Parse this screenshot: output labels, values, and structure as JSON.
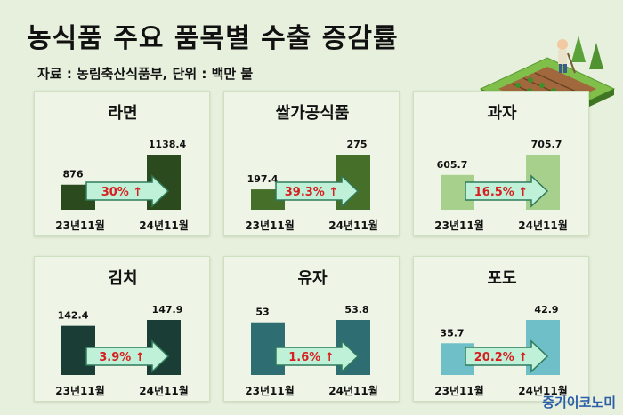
{
  "header": {
    "title": "농식품 주요 품목별 수출 증감률",
    "source": "자료 : 농림축산식품부, 단위 : 백만 불"
  },
  "brand": "중기이코노미",
  "chart_data": [
    {
      "type": "bar",
      "title": "라면",
      "categories": [
        "23년11월",
        "24년11월"
      ],
      "values": [
        876,
        1138.4
      ],
      "value_labels": [
        "876",
        "1138.4"
      ],
      "change": "30%",
      "colors": [
        "#2b4a1e",
        "#2b4a1e"
      ]
    },
    {
      "type": "bar",
      "title": "쌀가공식품",
      "categories": [
        "23년11월",
        "24년11월"
      ],
      "values": [
        197.4,
        275
      ],
      "value_labels": [
        "197.4",
        "275"
      ],
      "change": "39.3%",
      "colors": [
        "#466f2a",
        "#466f2a"
      ]
    },
    {
      "type": "bar",
      "title": "과자",
      "categories": [
        "23년11월",
        "24년11월"
      ],
      "values": [
        605.7,
        705.7
      ],
      "value_labels": [
        "605.7",
        "705.7"
      ],
      "change": "16.5%",
      "colors": [
        "#a7d08c",
        "#a7d08c"
      ]
    },
    {
      "type": "bar",
      "title": "김치",
      "categories": [
        "23년11월",
        "24년11월"
      ],
      "values": [
        142.4,
        147.9
      ],
      "value_labels": [
        "142.4",
        "147.9"
      ],
      "change": "3.9%",
      "colors": [
        "#1a3d36",
        "#1a3d36"
      ]
    },
    {
      "type": "bar",
      "title": "유자",
      "categories": [
        "23년11월",
        "24년11월"
      ],
      "values": [
        53,
        53.8
      ],
      "value_labels": [
        "53",
        "53.8"
      ],
      "change": "1.6%",
      "colors": [
        "#2e6e72",
        "#2e6e72"
      ]
    },
    {
      "type": "bar",
      "title": "포도",
      "categories": [
        "23년11월",
        "24년11월"
      ],
      "values": [
        35.7,
        42.9
      ],
      "value_labels": [
        "35.7",
        "42.9"
      ],
      "change": "20.2%",
      "colors": [
        "#6fbfc9",
        "#6fbfc9"
      ]
    }
  ]
}
